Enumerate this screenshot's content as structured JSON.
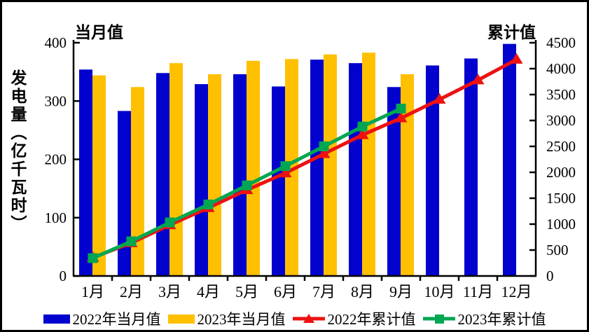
{
  "chart_data": {
    "type": "combo-bar-line",
    "categories": [
      "1月",
      "2月",
      "3月",
      "4月",
      "5月",
      "6月",
      "7月",
      "8月",
      "9月",
      "10月",
      "11月",
      "12月"
    ],
    "left_axis": {
      "title": "当月值",
      "label": "发电量（亿千瓦时）",
      "min": 0,
      "max": 400,
      "step": 100
    },
    "right_axis": {
      "title": "累计值",
      "min": 0,
      "max": 4500,
      "step": 500
    },
    "grid": false,
    "legend_position": "bottom",
    "series": [
      {
        "name": "2022年当月值",
        "type": "bar",
        "axis": "left",
        "color": "#0202CE",
        "marker": "rect",
        "values": [
          354,
          283,
          348,
          329,
          346,
          325,
          371,
          365,
          324,
          361,
          373,
          398
        ]
      },
      {
        "name": "2023年当月值",
        "type": "bar",
        "axis": "left",
        "color": "#FFC000",
        "marker": "rect",
        "values": [
          344,
          324,
          365,
          346,
          369,
          372,
          380,
          383,
          346,
          null,
          null,
          null
        ]
      },
      {
        "name": "2022年累计值",
        "type": "line",
        "axis": "right",
        "color": "#EE1111",
        "marker": "triangle",
        "values": [
          354,
          637,
          985,
          1314,
          1660,
          1985,
          2356,
          2721,
          3045,
          3406,
          3779,
          4177
        ]
      },
      {
        "name": "2023年累计值",
        "type": "line",
        "axis": "right",
        "color": "#00A651",
        "marker": "square",
        "values": [
          344,
          668,
          1033,
          1379,
          1748,
          2120,
          2500,
          2883,
          3229,
          null,
          null,
          null
        ]
      }
    ]
  },
  "colors": {
    "axis": "#000000",
    "background": "#FFFFFF",
    "frame_border": "#000000",
    "text": "#000000"
  }
}
